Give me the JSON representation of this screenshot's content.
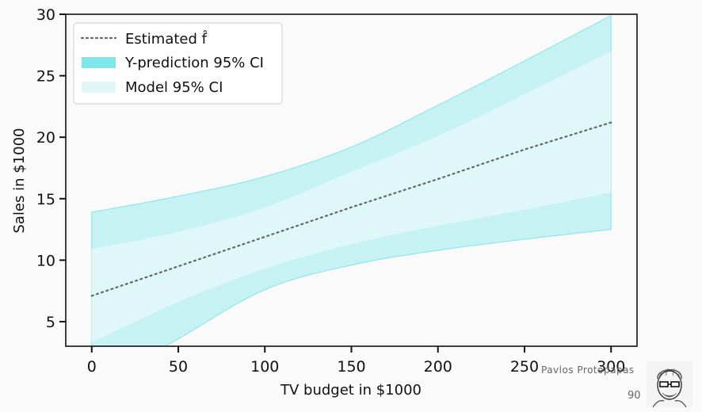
{
  "chart_data": {
    "type": "area",
    "xlabel": "TV budget in $1000",
    "ylabel": "Sales in $1000",
    "xlim": [
      -15,
      315
    ],
    "ylim": [
      3,
      30
    ],
    "xticks": [
      0,
      50,
      100,
      150,
      200,
      250,
      300
    ],
    "yticks": [
      5,
      10,
      15,
      20,
      25,
      30
    ],
    "grid": false,
    "legend_position": "top-left",
    "x": [
      0,
      50,
      100,
      150,
      200,
      250,
      300
    ],
    "series": [
      {
        "name": "Estimated f̂",
        "style": "dotted",
        "color": "#666666",
        "values": [
          7.1,
          9.5,
          11.9,
          14.3,
          16.6,
          19.0,
          21.2
        ]
      },
      {
        "name": "Y-prediction 95% CI",
        "style": "band",
        "color": "#7fe6ea",
        "lower": [
          -0.4,
          3.6,
          7.6,
          9.6,
          10.8,
          11.7,
          12.5
        ],
        "upper": [
          13.9,
          15.2,
          16.8,
          19.2,
          22.6,
          26.2,
          29.9
        ]
      },
      {
        "name": "Model 95% CI",
        "style": "band",
        "color": "#dff7f8",
        "lower": [
          3.3,
          6.6,
          9.3,
          11.3,
          12.8,
          14.1,
          15.5
        ],
        "upper": [
          10.9,
          12.3,
          14.3,
          17.2,
          20.1,
          23.5,
          27.0
        ]
      }
    ]
  },
  "footer": {
    "author": "Pavlos Protopapas",
    "page": "90"
  },
  "colors": {
    "prediction_band": "#7fe6ea",
    "model_band": "#dff7f8",
    "estimate_line": "#666666",
    "axis": "#111111"
  }
}
